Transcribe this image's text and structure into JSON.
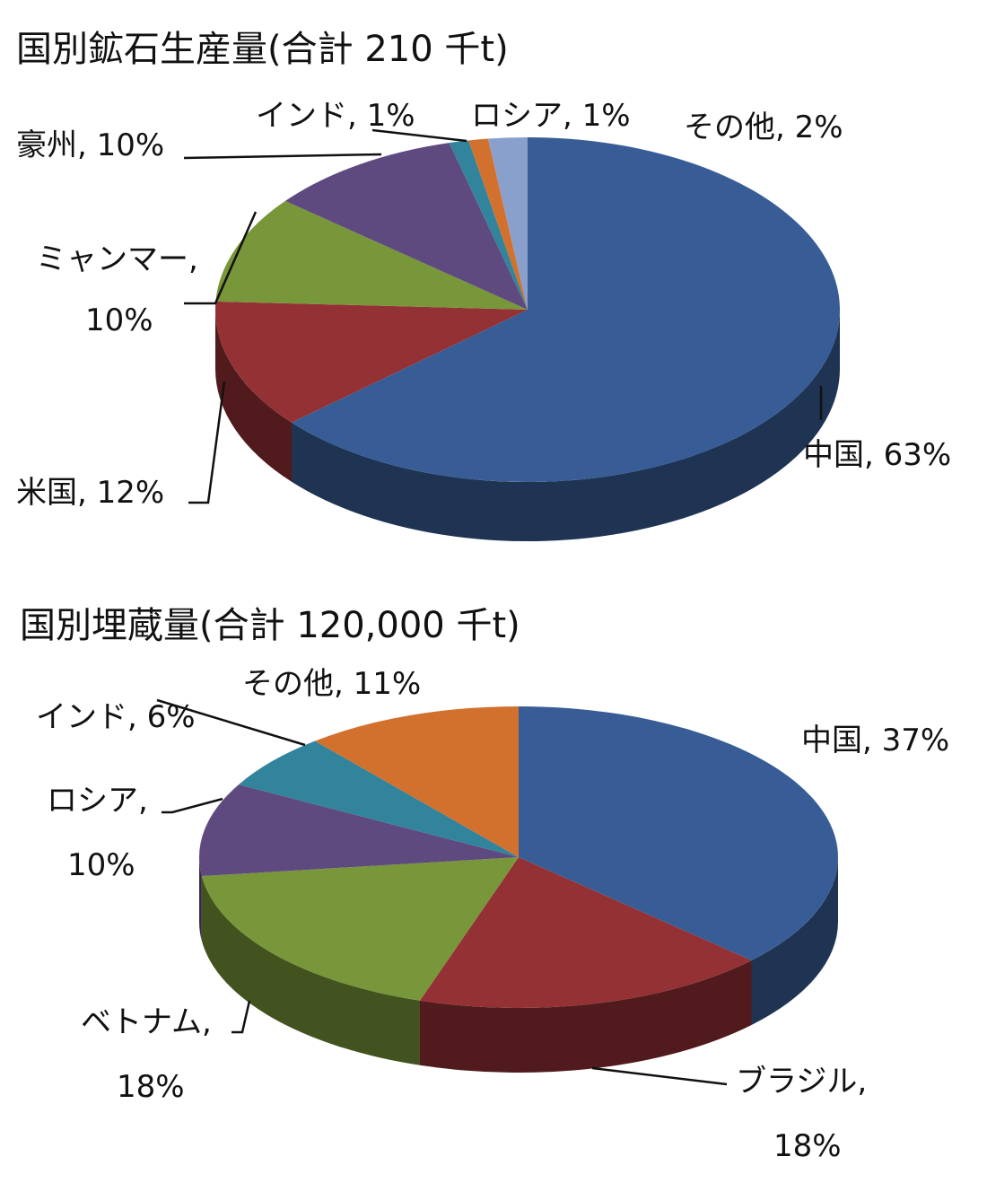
{
  "chart_data": [
    {
      "type": "pie",
      "title": "国別鉱石生産量(合計 210 千t)",
      "values": [
        63,
        12,
        10,
        10,
        1,
        1,
        2
      ],
      "value_labels": [
        "中国, 63%",
        "米国, 12%",
        "ミャンマー, 10%",
        "豪州, 10%",
        "インド, 1%",
        "ロシア, 1%",
        "その他, 2%"
      ],
      "colors": [
        "#385d96",
        "#943134",
        "#78963a",
        "#5f4a7f",
        "#31849b",
        "#d2712e",
        "#8aa0cc"
      ]
    },
    {
      "type": "pie",
      "title": "国別埋蔵量(合計 120,000 千t)",
      "values": [
        37,
        18,
        18,
        10,
        6,
        11
      ],
      "value_labels": [
        "中国, 37%",
        "ブラジル, 18%",
        "ベトナム, 18%",
        "ロシア, 10%",
        "インド, 6%",
        "その他, 11%"
      ],
      "colors": [
        "#385d96",
        "#943134",
        "#78963a",
        "#5f4a7f",
        "#31849b",
        "#d2712e"
      ]
    }
  ]
}
